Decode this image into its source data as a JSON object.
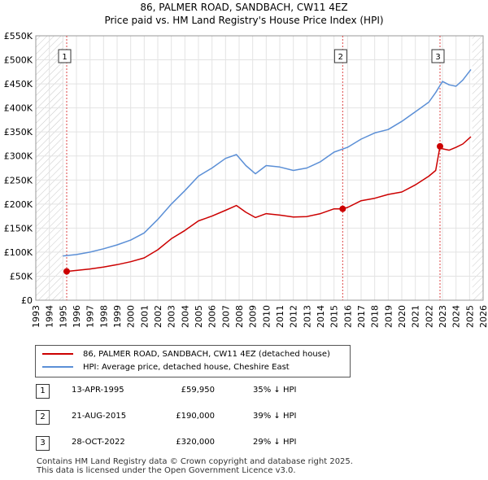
{
  "title_line1": "86, PALMER ROAD, SANDBACH, CW11 4EZ",
  "title_line2": "Price paid vs. HM Land Registry's House Price Index (HPI)",
  "chart_data": {
    "type": "line",
    "title": "Price paid vs. HM Land Registry's House Price Index (HPI)",
    "xlabel": "",
    "ylabel": "",
    "xlim": [
      1993,
      2026
    ],
    "ylim": [
      0,
      550000
    ],
    "x_ticks": [
      "1993",
      "1994",
      "1995",
      "1996",
      "1997",
      "1998",
      "1999",
      "2000",
      "2001",
      "2002",
      "2003",
      "2004",
      "2005",
      "2006",
      "2007",
      "2008",
      "2009",
      "2010",
      "2011",
      "2012",
      "2013",
      "2014",
      "2015",
      "2016",
      "2017",
      "2018",
      "2019",
      "2020",
      "2021",
      "2022",
      "2023",
      "2024",
      "2025",
      "2026"
    ],
    "y_ticks": [
      {
        "value": 0,
        "label": "£0"
      },
      {
        "value": 50000,
        "label": "£50K"
      },
      {
        "value": 100000,
        "label": "£100K"
      },
      {
        "value": 150000,
        "label": "£150K"
      },
      {
        "value": 200000,
        "label": "£200K"
      },
      {
        "value": 250000,
        "label": "£250K"
      },
      {
        "value": 300000,
        "label": "£300K"
      },
      {
        "value": 350000,
        "label": "£350K"
      },
      {
        "value": 400000,
        "label": "£400K"
      },
      {
        "value": 450000,
        "label": "£450K"
      },
      {
        "value": 500000,
        "label": "£500K"
      },
      {
        "value": 550000,
        "label": "£550K"
      }
    ],
    "hatched_before": 1995.0,
    "hatched_after": 2025.2,
    "grid": true,
    "series": [
      {
        "name": "86, PALMER ROAD, SANDBACH, CW11 4EZ (detached house)",
        "color": "#cc0000",
        "x": [
          1995.28,
          1996,
          1997,
          1998,
          1999,
          2000,
          2001,
          2002,
          2003,
          2004,
          2005,
          2006,
          2007,
          2007.8,
          2008.5,
          2009.2,
          2010,
          2011,
          2012,
          2013,
          2014,
          2015,
          2015.64,
          2016,
          2017,
          2018,
          2019,
          2020,
          2021,
          2022,
          2022.5,
          2022.82,
          2023,
          2023.5,
          2024,
          2024.5,
          2025.1
        ],
        "values": [
          59950,
          62000,
          65000,
          69000,
          74000,
          80000,
          88000,
          105000,
          128000,
          145000,
          165000,
          175000,
          187000,
          197000,
          183000,
          172000,
          180000,
          177000,
          173000,
          174000,
          180000,
          190000,
          190000,
          193000,
          207000,
          212000,
          220000,
          225000,
          240000,
          258000,
          270000,
          320000,
          315000,
          312000,
          318000,
          325000,
          340000
        ]
      },
      {
        "name": "HPI: Average price, detached house, Cheshire East",
        "color": "#5b8fd6",
        "x": [
          1995,
          1996,
          1997,
          1998,
          1999,
          2000,
          2001,
          2002,
          2003,
          2004,
          2005,
          2006,
          2007,
          2007.8,
          2008.5,
          2009.2,
          2010,
          2011,
          2012,
          2013,
          2014,
          2015,
          2016,
          2017,
          2018,
          2019,
          2020,
          2021,
          2022,
          2022.5,
          2023,
          2023.5,
          2024,
          2024.5,
          2025.1
        ],
        "values": [
          92000,
          95000,
          100000,
          107000,
          115000,
          125000,
          140000,
          168000,
          200000,
          228000,
          258000,
          275000,
          295000,
          303000,
          280000,
          263000,
          280000,
          277000,
          270000,
          275000,
          288000,
          308000,
          318000,
          335000,
          348000,
          355000,
          372000,
          392000,
          412000,
          432000,
          455000,
          448000,
          445000,
          458000,
          480000
        ]
      }
    ],
    "annotations": [
      {
        "label": "1",
        "x": 1995.28,
        "y": 59950
      },
      {
        "label": "2",
        "x": 2015.64,
        "y": 190000
      },
      {
        "label": "3",
        "x": 2022.82,
        "y": 320000
      }
    ]
  },
  "legend": [
    {
      "label": "86, PALMER ROAD, SANDBACH, CW11 4EZ (detached house)",
      "color": "#cc0000"
    },
    {
      "label": "HPI: Average price, detached house, Cheshire East",
      "color": "#5b8fd6"
    }
  ],
  "sales": [
    {
      "num": "1",
      "date": "13-APR-1995",
      "price": "£59,950",
      "hpi": "35% ↓ HPI"
    },
    {
      "num": "2",
      "date": "21-AUG-2015",
      "price": "£190,000",
      "hpi": "39% ↓ HPI"
    },
    {
      "num": "3",
      "date": "28-OCT-2022",
      "price": "£320,000",
      "hpi": "29% ↓ HPI"
    }
  ],
  "footer_line1": "Contains HM Land Registry data © Crown copyright and database right 2025.",
  "footer_line2": "This data is licensed under the Open Government Licence v3.0."
}
